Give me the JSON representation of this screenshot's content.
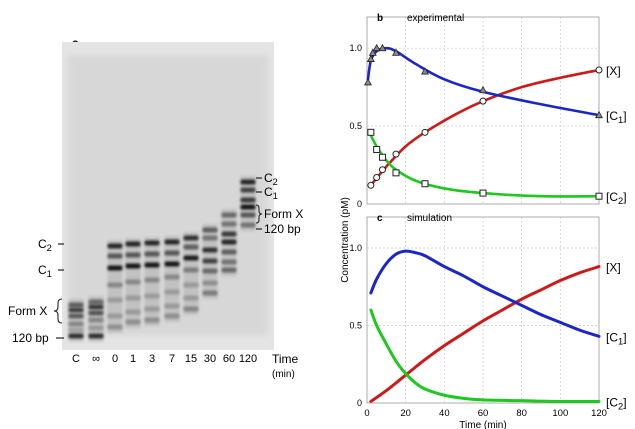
{
  "gel": {
    "panel_label": "a",
    "lanes": [
      "C",
      "∞",
      "0",
      "1",
      "3",
      "7",
      "15",
      "30",
      "60",
      "120"
    ],
    "xlabel": "Time",
    "xunit": "(min)",
    "left_labels": [
      {
        "main": "C",
        "sub": "2",
        "dash": true
      },
      {
        "main": "C",
        "sub": "1",
        "dash": true
      },
      {
        "main": "Form X",
        "sub": "",
        "brace": true
      },
      {
        "main": "120 bp",
        "sub": "",
        "dash": true
      }
    ],
    "right_labels": [
      {
        "main": "C",
        "sub": "2"
      },
      {
        "main": "C",
        "sub": "1"
      },
      {
        "main": "Form X",
        "sub": "",
        "brace": true
      },
      {
        "main": "120 bp",
        "sub": ""
      }
    ]
  },
  "chart_data": [
    {
      "type": "line",
      "panel_label": "b",
      "title": "experimental",
      "xlim": [
        0,
        120
      ],
      "ylim": [
        0,
        1.2
      ],
      "yticks": [
        0,
        0.5,
        1.0
      ],
      "ytick_labels": [
        "0",
        "0.5",
        "1.0"
      ],
      "grid": true,
      "series": [
        {
          "name": "X",
          "color": "#d01818",
          "marker": "circle",
          "points": [
            [
              2,
              0.12
            ],
            [
              5,
              0.17
            ],
            [
              8,
              0.22
            ],
            [
              15,
              0.32
            ],
            [
              30,
              0.46
            ],
            [
              60,
              0.66
            ],
            [
              120,
              0.86
            ]
          ],
          "curve": [
            [
              2,
              0.12
            ],
            [
              10,
              0.24
            ],
            [
              20,
              0.37
            ],
            [
              30,
              0.46
            ],
            [
              45,
              0.57
            ],
            [
              60,
              0.66
            ],
            [
              80,
              0.75
            ],
            [
              100,
              0.81
            ],
            [
              120,
              0.86
            ]
          ]
        },
        {
          "name": "C1",
          "color": "#1a26c8",
          "marker": "triangle",
          "points": [
            [
              0.5,
              0.78
            ],
            [
              2,
              0.93
            ],
            [
              3,
              0.97
            ],
            [
              5,
              1.0
            ],
            [
              8,
              1.0
            ],
            [
              15,
              0.97
            ],
            [
              30,
              0.85
            ],
            [
              60,
              0.73
            ],
            [
              120,
              0.57
            ]
          ],
          "curve": [
            [
              0.5,
              0.8
            ],
            [
              2,
              0.92
            ],
            [
              5,
              0.98
            ],
            [
              10,
              1.0
            ],
            [
              15,
              0.98
            ],
            [
              25,
              0.9
            ],
            [
              40,
              0.8
            ],
            [
              60,
              0.72
            ],
            [
              90,
              0.64
            ],
            [
              120,
              0.57
            ]
          ]
        },
        {
          "name": "C2",
          "color": "#1ec81e",
          "marker": "square",
          "points": [
            [
              2,
              0.46
            ],
            [
              5,
              0.35
            ],
            [
              8,
              0.3
            ],
            [
              15,
              0.2
            ],
            [
              30,
              0.13
            ],
            [
              60,
              0.07
            ],
            [
              120,
              0.05
            ]
          ],
          "curve": [
            [
              2,
              0.44
            ],
            [
              5,
              0.37
            ],
            [
              10,
              0.28
            ],
            [
              15,
              0.22
            ],
            [
              25,
              0.15
            ],
            [
              40,
              0.1
            ],
            [
              60,
              0.07
            ],
            [
              90,
              0.05
            ],
            [
              120,
              0.05
            ]
          ]
        }
      ]
    },
    {
      "type": "line",
      "panel_label": "c",
      "title": "simulation",
      "xlabel": "Time (min)",
      "xlim": [
        0,
        120
      ],
      "ylim": [
        0,
        1.2
      ],
      "xticks": [
        0,
        20,
        40,
        60,
        80,
        100,
        120
      ],
      "xtick_labels": [
        "0",
        "20",
        "40",
        "60",
        "80",
        "100",
        "120"
      ],
      "yticks": [
        0,
        0.5,
        1.0
      ],
      "ytick_labels": [
        "0",
        "0.5",
        "1.0"
      ],
      "grid": true,
      "series": [
        {
          "name": "X",
          "color": "#d01818",
          "curve": [
            [
              2,
              0.01
            ],
            [
              10,
              0.08
            ],
            [
              20,
              0.18
            ],
            [
              30,
              0.28
            ],
            [
              40,
              0.37
            ],
            [
              50,
              0.45
            ],
            [
              60,
              0.53
            ],
            [
              70,
              0.6
            ],
            [
              80,
              0.67
            ],
            [
              90,
              0.73
            ],
            [
              100,
              0.79
            ],
            [
              110,
              0.84
            ],
            [
              120,
              0.88
            ]
          ]
        },
        {
          "name": "C1",
          "color": "#1a26c8",
          "curve": [
            [
              2,
              0.71
            ],
            [
              5,
              0.8
            ],
            [
              10,
              0.9
            ],
            [
              15,
              0.96
            ],
            [
              20,
              0.98
            ],
            [
              25,
              0.97
            ],
            [
              30,
              0.95
            ],
            [
              40,
              0.88
            ],
            [
              50,
              0.82
            ],
            [
              60,
              0.75
            ],
            [
              70,
              0.69
            ],
            [
              80,
              0.63
            ],
            [
              90,
              0.57
            ],
            [
              100,
              0.52
            ],
            [
              110,
              0.47
            ],
            [
              120,
              0.43
            ]
          ]
        },
        {
          "name": "C2",
          "color": "#1ec81e",
          "curve": [
            [
              2,
              0.6
            ],
            [
              5,
              0.5
            ],
            [
              10,
              0.38
            ],
            [
              15,
              0.27
            ],
            [
              20,
              0.19
            ],
            [
              25,
              0.13
            ],
            [
              30,
              0.09
            ],
            [
              40,
              0.05
            ],
            [
              50,
              0.03
            ],
            [
              60,
              0.02
            ],
            [
              80,
              0.015
            ],
            [
              100,
              0.01
            ],
            [
              120,
              0.01
            ]
          ]
        }
      ]
    }
  ],
  "shared_ylabel": "Concentration (pM)",
  "series_labels": [
    {
      "main": "[X]",
      "base": "[X]",
      "sub": ""
    },
    {
      "main": "[C1]",
      "base": "[C",
      "sub": "1",
      "close": "]"
    },
    {
      "main": "[C2]",
      "base": "[C",
      "sub": "2",
      "close": "]"
    }
  ]
}
